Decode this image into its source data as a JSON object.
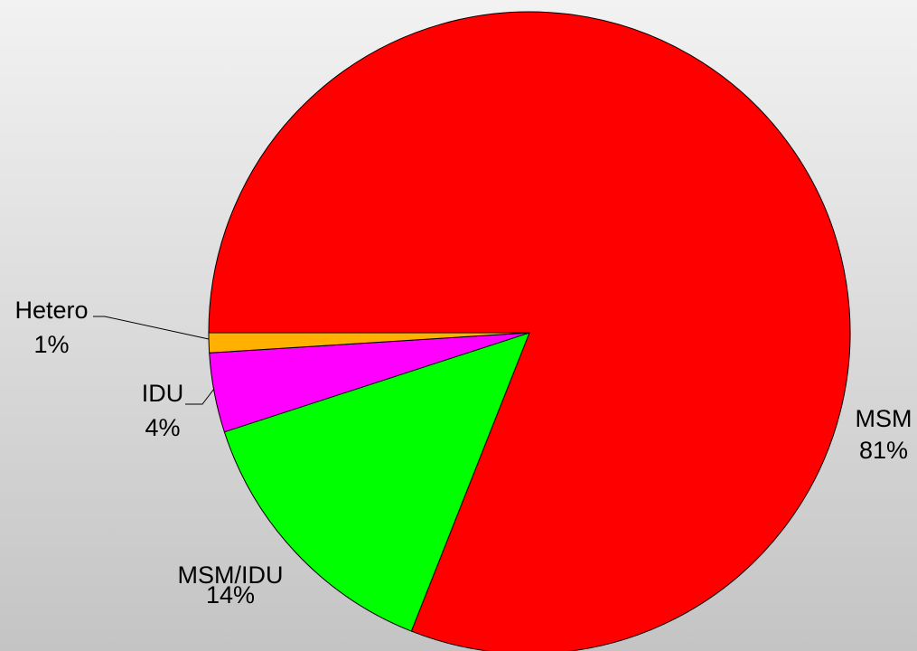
{
  "chart_data": {
    "type": "pie",
    "categories": [
      "MSM",
      "MSM/IDU",
      "IDU",
      "Hetero"
    ],
    "values": [
      81,
      14,
      4,
      1
    ],
    "value_labels": [
      "81%",
      "14%",
      "4%",
      "1%"
    ],
    "colors": [
      "#ff0000",
      "#00ff00",
      "#ff00ff",
      "#ffb000"
    ]
  }
}
